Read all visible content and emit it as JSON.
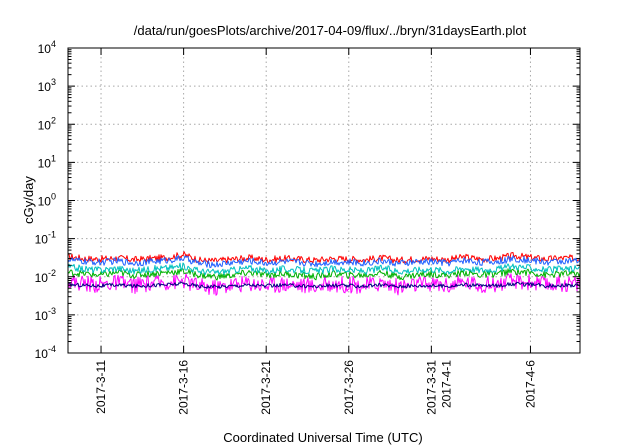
{
  "chart_data": {
    "type": "line",
    "title": "/data/run/goesPlots/archive/2017-04-09/flux/../bryn/31daysEarth.plot",
    "xlabel": "Coordinated Universal Time (UTC)",
    "ylabel": "cGy/day",
    "yscale": "log",
    "ylim": [
      0.0001,
      10000
    ],
    "xlim": [
      "2017-03-09 00:00",
      "2017-04-09 00:00"
    ],
    "grid": true,
    "legend": "none",
    "y_ticks": [
      {
        "value": 0.0001,
        "base": "10",
        "exp": "-4"
      },
      {
        "value": 0.001,
        "base": "10",
        "exp": "-3"
      },
      {
        "value": 0.01,
        "base": "10",
        "exp": "-2"
      },
      {
        "value": 0.1,
        "base": "10",
        "exp": "-1"
      },
      {
        "value": 1,
        "base": "10",
        "exp": "0"
      },
      {
        "value": 10,
        "base": "10",
        "exp": "1"
      },
      {
        "value": 100,
        "base": "10",
        "exp": "2"
      },
      {
        "value": 1000,
        "base": "10",
        "exp": "3"
      },
      {
        "value": 10000,
        "base": "10",
        "exp": "4"
      }
    ],
    "x_ticks": [
      {
        "date": "2017-03-11",
        "lines": [
          "2017-3-11"
        ]
      },
      {
        "date": "2017-03-16",
        "lines": [
          "2017-3-16"
        ]
      },
      {
        "date": "2017-03-21",
        "lines": [
          "2017-3-21"
        ]
      },
      {
        "date": "2017-03-26",
        "lines": [
          "2017-3-26"
        ]
      },
      {
        "date": "2017-03-31",
        "lines": [
          "2017-3-31",
          "2017-4-1"
        ]
      },
      {
        "date": "2017-04-06",
        "lines": [
          "2017-4-6"
        ]
      }
    ],
    "series": [
      {
        "color": "#ff0000",
        "values": [
          {
            "x": "2017-03-09",
            "y": 0.034
          },
          {
            "x": "2017-03-10",
            "y": 0.03
          },
          {
            "x": "2017-03-11",
            "y": 0.029
          },
          {
            "x": "2017-03-12",
            "y": 0.031
          },
          {
            "x": "2017-03-13",
            "y": 0.028
          },
          {
            "x": "2017-03-14",
            "y": 0.03
          },
          {
            "x": "2017-03-15",
            "y": 0.032
          },
          {
            "x": "2017-03-16",
            "y": 0.038
          },
          {
            "x": "2017-03-17",
            "y": 0.027
          },
          {
            "x": "2017-03-18",
            "y": 0.026
          },
          {
            "x": "2017-03-19",
            "y": 0.029
          },
          {
            "x": "2017-03-20",
            "y": 0.031
          },
          {
            "x": "2017-03-21",
            "y": 0.028
          },
          {
            "x": "2017-03-22",
            "y": 0.03
          },
          {
            "x": "2017-03-23",
            "y": 0.029
          },
          {
            "x": "2017-03-24",
            "y": 0.027
          },
          {
            "x": "2017-03-25",
            "y": 0.03
          },
          {
            "x": "2017-03-26",
            "y": 0.029
          },
          {
            "x": "2017-03-27",
            "y": 0.028
          },
          {
            "x": "2017-03-28",
            "y": 0.031
          },
          {
            "x": "2017-03-29",
            "y": 0.027
          },
          {
            "x": "2017-03-30",
            "y": 0.029
          },
          {
            "x": "2017-03-31",
            "y": 0.03
          },
          {
            "x": "2017-04-01",
            "y": 0.028
          },
          {
            "x": "2017-04-02",
            "y": 0.033
          },
          {
            "x": "2017-04-03",
            "y": 0.029
          },
          {
            "x": "2017-04-04",
            "y": 0.03
          },
          {
            "x": "2017-04-05",
            "y": 0.036
          },
          {
            "x": "2017-04-06",
            "y": 0.032
          },
          {
            "x": "2017-04-07",
            "y": 0.029
          },
          {
            "x": "2017-04-08",
            "y": 0.031
          },
          {
            "x": "2017-04-09",
            "y": 0.03
          }
        ]
      },
      {
        "color": "#2060ff",
        "values": [
          {
            "x": "2017-03-09",
            "y": 0.028
          },
          {
            "x": "2017-03-10",
            "y": 0.025
          },
          {
            "x": "2017-03-11",
            "y": 0.024
          },
          {
            "x": "2017-03-12",
            "y": 0.026
          },
          {
            "x": "2017-03-13",
            "y": 0.023
          },
          {
            "x": "2017-03-14",
            "y": 0.025
          },
          {
            "x": "2017-03-15",
            "y": 0.027
          },
          {
            "x": "2017-03-16",
            "y": 0.031
          },
          {
            "x": "2017-03-17",
            "y": 0.022
          },
          {
            "x": "2017-03-18",
            "y": 0.021
          },
          {
            "x": "2017-03-19",
            "y": 0.024
          },
          {
            "x": "2017-03-20",
            "y": 0.026
          },
          {
            "x": "2017-03-21",
            "y": 0.023
          },
          {
            "x": "2017-03-22",
            "y": 0.025
          },
          {
            "x": "2017-03-23",
            "y": 0.024
          },
          {
            "x": "2017-03-24",
            "y": 0.022
          },
          {
            "x": "2017-03-25",
            "y": 0.025
          },
          {
            "x": "2017-03-26",
            "y": 0.024
          },
          {
            "x": "2017-03-27",
            "y": 0.023
          },
          {
            "x": "2017-03-28",
            "y": 0.026
          },
          {
            "x": "2017-03-29",
            "y": 0.022
          },
          {
            "x": "2017-03-30",
            "y": 0.024
          },
          {
            "x": "2017-03-31",
            "y": 0.025
          },
          {
            "x": "2017-04-01",
            "y": 0.023
          },
          {
            "x": "2017-04-02",
            "y": 0.027
          },
          {
            "x": "2017-04-03",
            "y": 0.024
          },
          {
            "x": "2017-04-04",
            "y": 0.025
          },
          {
            "x": "2017-04-05",
            "y": 0.03
          },
          {
            "x": "2017-04-06",
            "y": 0.027
          },
          {
            "x": "2017-04-07",
            "y": 0.024
          },
          {
            "x": "2017-04-08",
            "y": 0.026
          },
          {
            "x": "2017-04-09",
            "y": 0.025
          }
        ]
      },
      {
        "color": "#00c0c0",
        "values": [
          {
            "x": "2017-03-09",
            "y": 0.018
          },
          {
            "x": "2017-03-10",
            "y": 0.016
          },
          {
            "x": "2017-03-11",
            "y": 0.015
          },
          {
            "x": "2017-03-12",
            "y": 0.017
          },
          {
            "x": "2017-03-13",
            "y": 0.014
          },
          {
            "x": "2017-03-14",
            "y": 0.016
          },
          {
            "x": "2017-03-15",
            "y": 0.017
          },
          {
            "x": "2017-03-16",
            "y": 0.019
          },
          {
            "x": "2017-03-17",
            "y": 0.014
          },
          {
            "x": "2017-03-18",
            "y": 0.013
          },
          {
            "x": "2017-03-19",
            "y": 0.015
          },
          {
            "x": "2017-03-20",
            "y": 0.017
          },
          {
            "x": "2017-03-21",
            "y": 0.014
          },
          {
            "x": "2017-03-22",
            "y": 0.016
          },
          {
            "x": "2017-03-23",
            "y": 0.015
          },
          {
            "x": "2017-03-24",
            "y": 0.014
          },
          {
            "x": "2017-03-25",
            "y": 0.016
          },
          {
            "x": "2017-03-26",
            "y": 0.015
          },
          {
            "x": "2017-03-27",
            "y": 0.014
          },
          {
            "x": "2017-03-28",
            "y": 0.017
          },
          {
            "x": "2017-03-29",
            "y": 0.014
          },
          {
            "x": "2017-03-30",
            "y": 0.015
          },
          {
            "x": "2017-03-31",
            "y": 0.016
          },
          {
            "x": "2017-04-01",
            "y": 0.014
          },
          {
            "x": "2017-04-02",
            "y": 0.017
          },
          {
            "x": "2017-04-03",
            "y": 0.015
          },
          {
            "x": "2017-04-04",
            "y": 0.016
          },
          {
            "x": "2017-04-05",
            "y": 0.019
          },
          {
            "x": "2017-04-06",
            "y": 0.017
          },
          {
            "x": "2017-04-07",
            "y": 0.015
          },
          {
            "x": "2017-04-08",
            "y": 0.016
          },
          {
            "x": "2017-04-09",
            "y": 0.016
          }
        ]
      },
      {
        "color": "#00b000",
        "values": [
          {
            "x": "2017-03-09",
            "y": 0.013
          },
          {
            "x": "2017-03-10",
            "y": 0.012
          },
          {
            "x": "2017-03-11",
            "y": 0.011
          },
          {
            "x": "2017-03-12",
            "y": 0.013
          },
          {
            "x": "2017-03-13",
            "y": 0.011
          },
          {
            "x": "2017-03-14",
            "y": 0.012
          },
          {
            "x": "2017-03-15",
            "y": 0.013
          },
          {
            "x": "2017-03-16",
            "y": 0.014
          },
          {
            "x": "2017-03-17",
            "y": 0.011
          },
          {
            "x": "2017-03-18",
            "y": 0.01
          },
          {
            "x": "2017-03-19",
            "y": 0.011
          },
          {
            "x": "2017-03-20",
            "y": 0.013
          },
          {
            "x": "2017-03-21",
            "y": 0.011
          },
          {
            "x": "2017-03-22",
            "y": 0.012
          },
          {
            "x": "2017-03-23",
            "y": 0.011
          },
          {
            "x": "2017-03-24",
            "y": 0.01
          },
          {
            "x": "2017-03-25",
            "y": 0.012
          },
          {
            "x": "2017-03-26",
            "y": 0.011
          },
          {
            "x": "2017-03-27",
            "y": 0.011
          },
          {
            "x": "2017-03-28",
            "y": 0.013
          },
          {
            "x": "2017-03-29",
            "y": 0.01
          },
          {
            "x": "2017-03-30",
            "y": 0.011
          },
          {
            "x": "2017-03-31",
            "y": 0.012
          },
          {
            "x": "2017-04-01",
            "y": 0.011
          },
          {
            "x": "2017-04-02",
            "y": 0.013
          },
          {
            "x": "2017-04-03",
            "y": 0.011
          },
          {
            "x": "2017-04-04",
            "y": 0.012
          },
          {
            "x": "2017-04-05",
            "y": 0.014
          },
          {
            "x": "2017-04-06",
            "y": 0.013
          },
          {
            "x": "2017-04-07",
            "y": 0.011
          },
          {
            "x": "2017-04-08",
            "y": 0.012
          },
          {
            "x": "2017-04-09",
            "y": 0.012
          }
        ]
      },
      {
        "color": "#000080",
        "values": [
          {
            "x": "2017-03-09",
            "y": 0.0062
          },
          {
            "x": "2017-03-10",
            "y": 0.006
          },
          {
            "x": "2017-03-11",
            "y": 0.0058
          },
          {
            "x": "2017-03-12",
            "y": 0.0061
          },
          {
            "x": "2017-03-13",
            "y": 0.0057
          },
          {
            "x": "2017-03-14",
            "y": 0.006
          },
          {
            "x": "2017-03-15",
            "y": 0.0062
          },
          {
            "x": "2017-03-16",
            "y": 0.0066
          },
          {
            "x": "2017-03-17",
            "y": 0.0056
          },
          {
            "x": "2017-03-18",
            "y": 0.0055
          },
          {
            "x": "2017-03-19",
            "y": 0.0058
          },
          {
            "x": "2017-03-20",
            "y": 0.0061
          },
          {
            "x": "2017-03-21",
            "y": 0.0057
          },
          {
            "x": "2017-03-22",
            "y": 0.006
          },
          {
            "x": "2017-03-23",
            "y": 0.0058
          },
          {
            "x": "2017-03-24",
            "y": 0.0056
          },
          {
            "x": "2017-03-25",
            "y": 0.0059
          },
          {
            "x": "2017-03-26",
            "y": 0.0058
          },
          {
            "x": "2017-03-27",
            "y": 0.0057
          },
          {
            "x": "2017-03-28",
            "y": 0.0061
          },
          {
            "x": "2017-03-29",
            "y": 0.0056
          },
          {
            "x": "2017-03-30",
            "y": 0.0058
          },
          {
            "x": "2017-03-31",
            "y": 0.0059
          },
          {
            "x": "2017-04-01",
            "y": 0.0057
          },
          {
            "x": "2017-04-02",
            "y": 0.0062
          },
          {
            "x": "2017-04-03",
            "y": 0.0058
          },
          {
            "x": "2017-04-04",
            "y": 0.0059
          },
          {
            "x": "2017-04-05",
            "y": 0.0065
          },
          {
            "x": "2017-04-06",
            "y": 0.0062
          },
          {
            "x": "2017-04-07",
            "y": 0.0058
          },
          {
            "x": "2017-04-08",
            "y": 0.006
          },
          {
            "x": "2017-04-09",
            "y": 0.0059
          }
        ]
      },
      {
        "color": "#ff00ff",
        "values": [
          {
            "x": "2017-03-09",
            "y": 0.0075
          },
          {
            "x": "2017-03-10",
            "y": 0.0068
          },
          {
            "x": "2017-03-11",
            "y": 0.0062
          },
          {
            "x": "2017-03-12",
            "y": 0.007
          },
          {
            "x": "2017-03-13",
            "y": 0.006
          },
          {
            "x": "2017-03-14",
            "y": 0.0066
          },
          {
            "x": "2017-03-15",
            "y": 0.0072
          },
          {
            "x": "2017-03-16",
            "y": 0.008
          },
          {
            "x": "2017-03-17",
            "y": 0.0055
          },
          {
            "x": "2017-03-18",
            "y": 0.0052
          },
          {
            "x": "2017-03-19",
            "y": 0.0063
          },
          {
            "x": "2017-03-20",
            "y": 0.0069
          },
          {
            "x": "2017-03-21",
            "y": 0.006
          },
          {
            "x": "2017-03-22",
            "y": 0.0066
          },
          {
            "x": "2017-03-23",
            "y": 0.0062
          },
          {
            "x": "2017-03-24",
            "y": 0.0056
          },
          {
            "x": "2017-03-25",
            "y": 0.0065
          },
          {
            "x": "2017-03-26",
            "y": 0.0062
          },
          {
            "x": "2017-03-27",
            "y": 0.0059
          },
          {
            "x": "2017-03-28",
            "y": 0.007
          },
          {
            "x": "2017-03-29",
            "y": 0.0055
          },
          {
            "x": "2017-03-30",
            "y": 0.0062
          },
          {
            "x": "2017-03-31",
            "y": 0.0066
          },
          {
            "x": "2017-04-01",
            "y": 0.0059
          },
          {
            "x": "2017-04-02",
            "y": 0.0072
          },
          {
            "x": "2017-04-03",
            "y": 0.0062
          },
          {
            "x": "2017-04-04",
            "y": 0.0066
          },
          {
            "x": "2017-04-05",
            "y": 0.0078
          },
          {
            "x": "2017-04-06",
            "y": 0.0072
          },
          {
            "x": "2017-04-07",
            "y": 0.0062
          },
          {
            "x": "2017-04-08",
            "y": 0.0068
          },
          {
            "x": "2017-04-09",
            "y": 0.0065
          }
        ]
      }
    ]
  }
}
